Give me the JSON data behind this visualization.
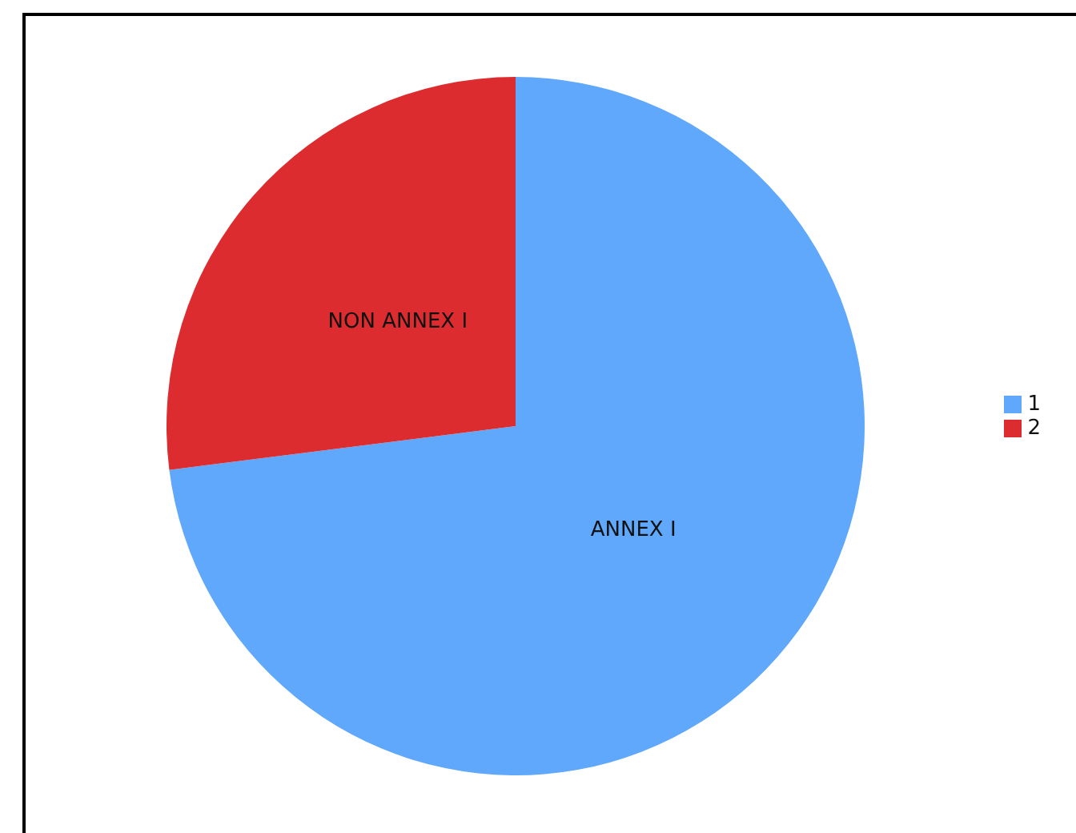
{
  "chart_data": {
    "type": "pie",
    "categories": [
      "1",
      "2"
    ],
    "values": [
      73,
      27
    ],
    "colors": [
      "#5fa8fc",
      "#dd2c2f"
    ],
    "annotations": [
      "ANNEX I",
      "NON ANNEX I"
    ],
    "legend": "right"
  }
}
